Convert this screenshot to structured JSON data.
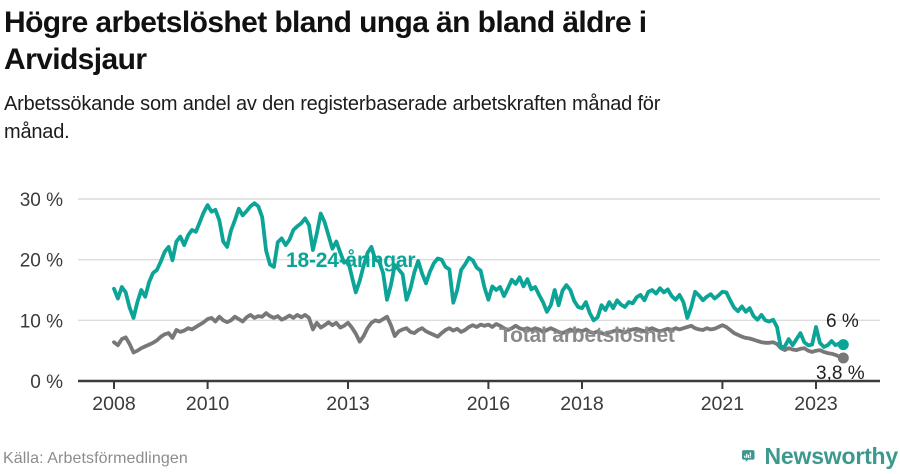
{
  "header": {
    "title_lines": [
      "Högre arbetslöshet bland unga än bland äldre i",
      "Arvidsjaur"
    ],
    "subtitle_lines": [
      "Arbetssökande som andel av den registerbaserade arbetskraften månad för",
      "månad."
    ]
  },
  "chart_data": {
    "type": "line",
    "title": "Högre arbetslöshet bland unga än bland äldre i Arvidsjaur",
    "subtitle": "Arbetssökande som andel av den registerbaserade arbetskraften månad för månad.",
    "x_unit": "month",
    "x_start": "2008-01",
    "x_end": "2023-08",
    "ylim": [
      0,
      32
    ],
    "grid": "horizontal",
    "legend_position": "inline-labels",
    "axis_color": "#3b3b3b",
    "grid_color": "#dcdcdc",
    "y_ticks": [
      {
        "value": 0,
        "label": "0 %"
      },
      {
        "value": 10,
        "label": "10 %"
      },
      {
        "value": 20,
        "label": "20 %"
      },
      {
        "value": 30,
        "label": "30 %"
      }
    ],
    "x_ticks": [
      {
        "year": 2008,
        "label": "2008"
      },
      {
        "year": 2010,
        "label": "2010"
      },
      {
        "year": 2013,
        "label": "2013"
      },
      {
        "year": 2016,
        "label": "2016"
      },
      {
        "year": 2018,
        "label": "2018"
      },
      {
        "year": 2021,
        "label": "2021"
      },
      {
        "year": 2023,
        "label": "2023"
      }
    ],
    "series": [
      {
        "name": "18-24-åringar",
        "color": "#0ba496",
        "label_color": "#0ba496",
        "end_label": "6 %",
        "end_value": 6.0,
        "values": [
          15.2,
          13.6,
          15.5,
          14.6,
          12.1,
          10.4,
          13.0,
          15.0,
          13.9,
          16.3,
          17.8,
          18.3,
          19.7,
          21.3,
          22.1,
          19.9,
          23.0,
          23.8,
          22.4,
          24.0,
          24.9,
          24.6,
          26.2,
          27.8,
          29.0,
          27.9,
          28.2,
          26.5,
          23.0,
          22.1,
          24.8,
          26.5,
          28.4,
          27.3,
          28.0,
          28.8,
          29.3,
          28.8,
          27.0,
          21.5,
          19.2,
          18.8,
          22.9,
          23.5,
          22.4,
          23.3,
          24.9,
          25.5,
          26.0,
          26.8,
          25.7,
          21.6,
          24.3,
          27.6,
          26.2,
          24.0,
          21.8,
          23.0,
          21.2,
          19.5,
          19.9,
          17.2,
          14.6,
          16.5,
          19.0,
          21.1,
          22.1,
          20.0,
          19.7,
          17.8,
          13.4,
          15.8,
          19.1,
          18.4,
          17.6,
          13.4,
          15.2,
          17.9,
          19.8,
          17.7,
          16.1,
          18.0,
          19.4,
          20.2,
          20.0,
          18.8,
          18.4,
          12.9,
          15.0,
          18.3,
          19.2,
          20.3,
          19.9,
          18.7,
          18.2,
          15.4,
          13.4,
          15.6,
          15.0,
          15.5,
          14.0,
          15.3,
          16.7,
          16.0,
          17.1,
          15.6,
          16.8,
          15.1,
          15.5,
          14.2,
          13.0,
          11.4,
          12.5,
          15.0,
          12.5,
          14.9,
          15.8,
          15.0,
          13.2,
          12.2,
          12.0,
          13.0,
          11.2,
          10.0,
          10.5,
          12.5,
          11.7,
          13.0,
          12.0,
          13.3,
          12.6,
          12.2,
          13.0,
          12.8,
          13.8,
          14.2,
          13.3,
          14.7,
          15.0,
          14.4,
          15.3,
          14.6,
          15.1,
          14.0,
          13.4,
          14.2,
          13.0,
          10.4,
          12.2,
          14.7,
          14.1,
          13.3,
          13.9,
          14.3,
          13.6,
          14.1,
          14.7,
          14.6,
          13.3,
          12.1,
          11.5,
          12.3,
          11.4,
          12.0,
          10.7,
          10.1,
          10.9,
          10.0,
          9.8,
          10.1,
          8.9,
          5.5,
          5.7,
          6.9,
          5.9,
          6.9,
          7.9,
          6.4,
          5.9,
          6.0,
          8.9,
          6.3,
          5.6,
          5.9,
          6.6,
          5.9,
          6.2,
          6.0
        ]
      },
      {
        "name": "Total arbetslöshet",
        "color": "#787878",
        "label_color": "#8a8a8a",
        "end_label": "3,8 %",
        "end_value": 3.8,
        "values": [
          6.4,
          5.9,
          6.9,
          7.2,
          6.1,
          4.7,
          5.0,
          5.4,
          5.7,
          6.0,
          6.3,
          6.7,
          7.3,
          7.7,
          7.9,
          7.1,
          8.4,
          8.1,
          8.3,
          8.7,
          8.5,
          8.9,
          9.3,
          9.7,
          10.2,
          10.4,
          9.8,
          10.6,
          10.0,
          9.7,
          10.0,
          10.6,
          10.2,
          9.8,
          10.5,
          10.9,
          10.4,
          10.7,
          10.6,
          11.2,
          10.7,
          10.4,
          10.7,
          10.1,
          10.4,
          10.8,
          10.4,
          10.9,
          10.5,
          10.9,
          10.4,
          8.5,
          9.6,
          8.8,
          9.2,
          9.7,
          9.2,
          9.6,
          8.8,
          9.1,
          9.6,
          8.8,
          7.8,
          6.5,
          7.4,
          8.7,
          9.6,
          10.0,
          9.8,
          10.2,
          10.6,
          9.2,
          7.4,
          8.2,
          8.5,
          8.7,
          8.1,
          7.9,
          8.4,
          8.7,
          8.2,
          7.9,
          7.6,
          7.3,
          7.9,
          8.4,
          8.7,
          8.3,
          8.6,
          8.1,
          8.4,
          8.9,
          9.2,
          8.9,
          9.3,
          9.1,
          9.3,
          8.9,
          9.4,
          9.1,
          8.7,
          8.4,
          8.7,
          9.1,
          8.7,
          8.5,
          8.7,
          8.4,
          8.7,
          8.5,
          8.1,
          8.4,
          8.7,
          8.4,
          8.1,
          7.9,
          8.2,
          8.5,
          8.2,
          8.4,
          8.2,
          8.5,
          8.1,
          7.9,
          8.2,
          7.9,
          7.7,
          8.0,
          8.2,
          8.4,
          8.2,
          8.0,
          8.3,
          8.5,
          8.6,
          8.4,
          8.2,
          8.5,
          8.7,
          8.4,
          8.2,
          8.4,
          8.6,
          8.4,
          8.7,
          8.5,
          8.7,
          8.9,
          9.1,
          8.7,
          8.5,
          8.4,
          8.7,
          8.5,
          8.6,
          8.9,
          9.2,
          8.9,
          8.4,
          7.9,
          7.6,
          7.3,
          7.1,
          7.0,
          6.8,
          6.6,
          6.4,
          6.3,
          6.3,
          6.4,
          6.1,
          5.4,
          5.1,
          5.4,
          5.2,
          5.1,
          5.3,
          5.4,
          5.0,
          4.8,
          5.0,
          5.1,
          4.8,
          4.6,
          4.5,
          4.3,
          4.0,
          3.8
        ]
      }
    ]
  },
  "footer": {
    "source": "Källa: Arbetsförmedlingen",
    "brand": "Newsworthy"
  }
}
